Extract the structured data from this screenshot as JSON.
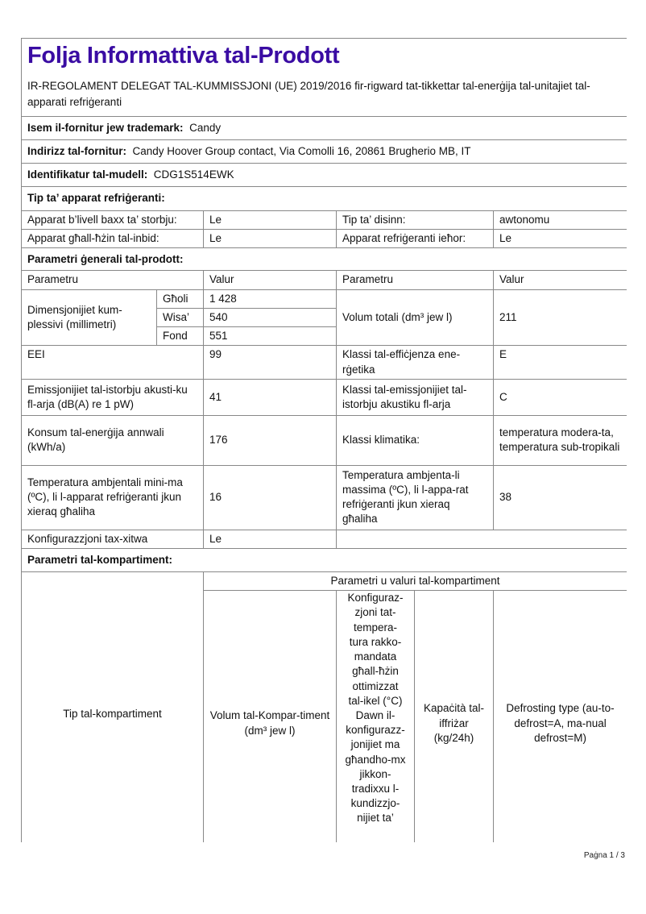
{
  "title": "Folja Informattiva tal-Prodott",
  "subtitle": "IR-REGOLAMENT DELEGAT TAL-KUMMISSJONI (UE) 2019/2016 fir-rigward tat-tikkettar tal-enerġija tal-unitajiet tal-apparati refriġeranti",
  "supplier": {
    "label": "Isem il-fornitur jew trademark:",
    "value": "Candy"
  },
  "address": {
    "label": "Indirizz tal-fornitur:",
    "value": "Candy Hoover Group contact, Via Comolli 16, 20861 Brugherio MB, IT"
  },
  "model": {
    "label": "Identifikatur tal-mudell:",
    "value": "CDG1S514EWK"
  },
  "type_section": {
    "heading": "Tip ta’ apparat refriġeranti:",
    "rows": [
      {
        "l1": "Apparat b’livell baxx ta’ storbju:",
        "v1": "Le",
        "l2": "Tip ta’ disinn:",
        "v2": "awtonomu"
      },
      {
        "l1": "Apparat għall-ħżin tal-inbid:",
        "v1": "Le",
        "l2": "Apparat refriġeranti ieħor:",
        "v2": "Le"
      }
    ]
  },
  "general": {
    "heading": "Parametri ġenerali tal-prodott:",
    "col_param": "Parametru",
    "col_value": "Valur",
    "dimensions": {
      "label": "Dimensjonijiet kum-plessivi (millimetri)",
      "items": [
        {
          "name": "Għoli",
          "value": "1 428"
        },
        {
          "name": "Wisa’",
          "value": "540"
        },
        {
          "name": "Fond",
          "value": "551"
        }
      ]
    },
    "total_volume": {
      "label": "Volum totali (dm³ jew l)",
      "value": "211"
    },
    "rows": [
      {
        "l1": "EEI",
        "v1": "99",
        "l2": "Klassi tal-effiċjenza ene-rġetika",
        "v2": "E"
      },
      {
        "l1": "Emissjonijiet tal-istorbju akusti-ku fl-arja (dB(A) re 1 pW)",
        "v1": "41",
        "l2": "Klassi tal-emissjonijiet tal-istorbju akustiku fl-arja",
        "v2": "C"
      },
      {
        "l1": "Konsum tal-enerġija annwali (kWh/a)",
        "v1": "176",
        "l2": "Klassi klimatika:",
        "v2": "temperatura modera-ta, temperatura sub-tropikali"
      },
      {
        "l1": "Temperatura ambjentali mini-ma (ºC), li l-apparat refriġeranti jkun xieraq għaliha",
        "v1": "16",
        "l2": "Temperatura ambjenta-li massima (ºC), li l-appa-rat refriġeranti jkun xieraq għaliha",
        "v2": "38"
      }
    ],
    "freestanding": {
      "label": "Konfigurazzjoni tax-xitwa",
      "value": "Le"
    }
  },
  "compartment": {
    "heading": "Parametri tal-kompartiment:",
    "type_col": "Tip tal-kompartiment",
    "group_header": "Parametri u valuri tal-kompartiment",
    "cols": [
      "Volum tal-Kompar-timent (dm³ jew l)",
      "Konfiguraz-zjoni tat-tempera-tura rakko-mandata għall-ħżin ottimizzat tal-ikel (°C) Dawn il-konfigurazz-jonijiet ma għandho-mx jikkon-tradixxu l-kundizzjo-nijiet ta’",
      "Kapaċità tal-iffriżar (kg/24h)",
      "Defrosting type (au-to-defrost=A, ma-nual defrost=M)"
    ]
  },
  "footer": {
    "page": "Paġna 1 / 3"
  },
  "colors": {
    "title": "#3a0ca3",
    "border": "#888888"
  }
}
